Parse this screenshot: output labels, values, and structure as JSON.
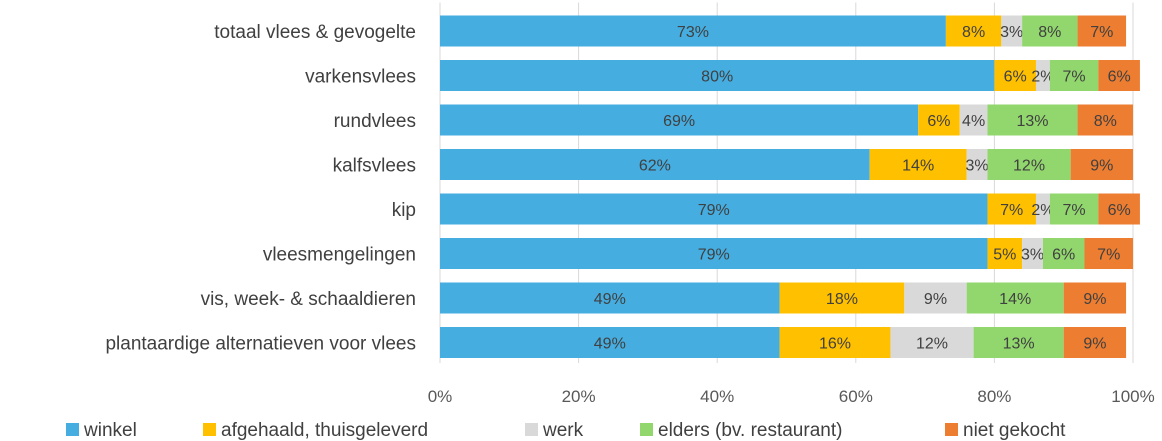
{
  "chart_data": {
    "type": "bar",
    "orientation": "horizontal",
    "stacked": "percent",
    "title": "",
    "xlabel": "",
    "ylabel": "",
    "xlim": [
      0,
      100
    ],
    "x_ticks": [
      "0%",
      "20%",
      "40%",
      "60%",
      "80%",
      "100%"
    ],
    "grid": true,
    "legend_position": "bottom",
    "categories": [
      "totaal vlees & gevogelte",
      "varkensvlees",
      "rundvlees",
      "kalfsvlees",
      "kip",
      "vleesmengelingen",
      "vis, week- & schaaldieren",
      "plantaardige alternatieven voor vlees"
    ],
    "series": [
      {
        "name": "winkel",
        "color": "#45ADE0",
        "values": [
          73,
          80,
          69,
          62,
          79,
          79,
          49,
          49
        ],
        "labels": [
          "73%",
          "80%",
          "69%",
          "62%",
          "79%",
          "79%",
          "49%",
          "49%"
        ]
      },
      {
        "name": "afgehaald, thuisgeleverd",
        "color": "#FFC000",
        "values": [
          8,
          6,
          6,
          14,
          7,
          5,
          18,
          16
        ],
        "labels": [
          "8%",
          "6%",
          "6%",
          "14%",
          "7%",
          "5%",
          "18%",
          "16%"
        ]
      },
      {
        "name": "werk",
        "color": "#D9D9D9",
        "values": [
          3,
          2,
          4,
          3,
          2,
          3,
          9,
          12
        ],
        "labels": [
          "3%",
          "2%",
          "4%",
          "3%",
          "2%",
          "3%",
          "9%",
          "12%"
        ]
      },
      {
        "name": "elders (bv. restaurant)",
        "color": "#92D76E",
        "values": [
          8,
          7,
          13,
          12,
          7,
          6,
          14,
          13
        ],
        "labels": [
          "8%",
          "7%",
          "13%",
          "12%",
          "7%",
          "6%",
          "14%",
          "13%"
        ]
      },
      {
        "name": "niet gekocht",
        "color": "#ED7D31",
        "values": [
          7,
          6,
          8,
          9,
          6,
          7,
          9,
          9
        ],
        "labels": [
          "7%",
          "6%",
          "8%",
          "9%",
          "6%",
          "7%",
          "9%",
          "9%"
        ]
      }
    ]
  }
}
